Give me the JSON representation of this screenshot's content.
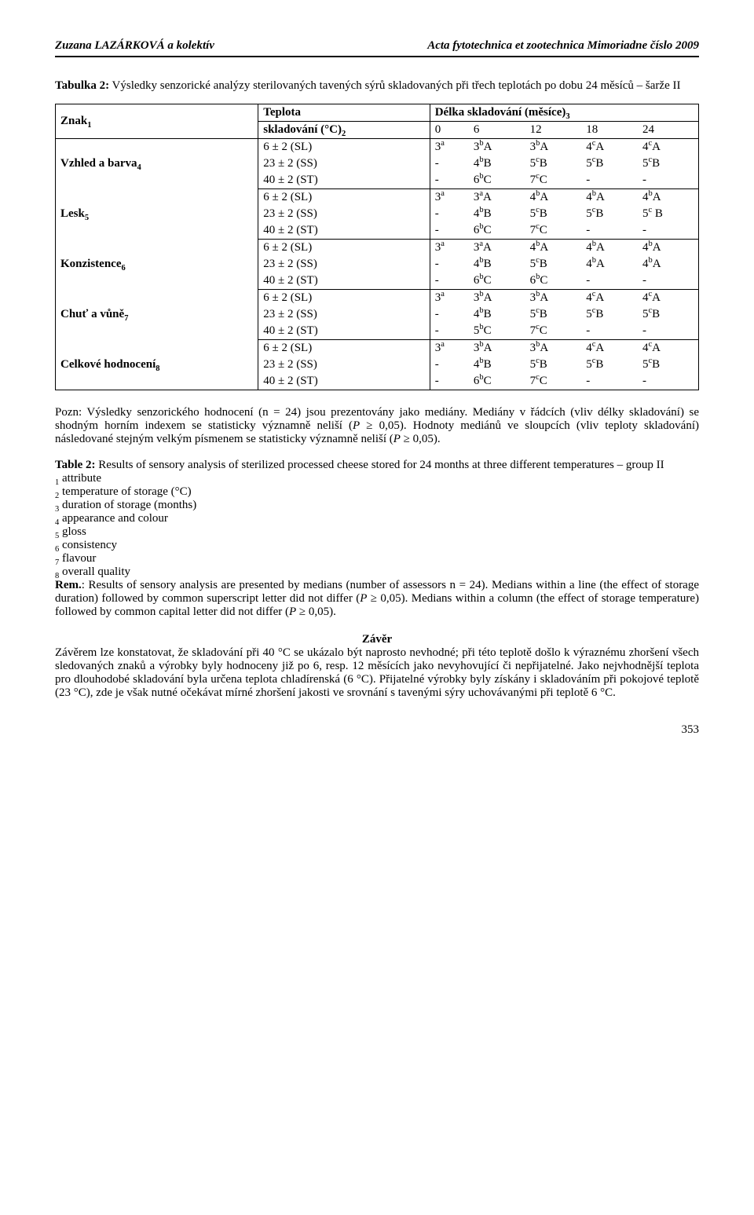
{
  "header": {
    "left": "Zuzana LAZÁRKOVÁ a kolektív",
    "right": "Acta fytotechnica et zootechnica Mimoriadne číslo 2009"
  },
  "caption_html": "<b>Tabulka 2:</b> Výsledky senzorické analýzy sterilovaných tavených sýrů skladovaných při třech teplotách po dobu 24 měsíců – šarže II",
  "table": {
    "h_znak": "Znak<sub>1</sub>",
    "h_temp_top": "Teplota",
    "h_temp_bot": "skladování (°C)<sub>2</sub>",
    "h_dur": "Délka skladování (měsíce)<sub>3</sub>",
    "months": [
      "0",
      "6",
      "12",
      "18",
      "24"
    ],
    "blocks": [
      {
        "label": "Vzhled a barva<sub>4</sub>",
        "rows": [
          {
            "t": "6 ± 2 (SL)",
            "c": [
              "3<sup>a</sup>",
              "3<sup>b</sup>A",
              "3<sup>b</sup>A",
              "4<sup>c</sup>A",
              "4<sup>c</sup>A"
            ]
          },
          {
            "t": "23 ± 2 (SS)",
            "c": [
              "-",
              "4<sup>b</sup>B",
              "5<sup>c</sup>B",
              "5<sup>c</sup>B",
              "5<sup>c</sup>B"
            ]
          },
          {
            "t": "40 ± 2 (ST)",
            "c": [
              "-",
              "6<sup>b</sup>C",
              "7<sup>c</sup>C",
              "-",
              "-"
            ]
          }
        ]
      },
      {
        "label": "Lesk<sub>5</sub>",
        "rows": [
          {
            "t": "6 ± 2 (SL)",
            "c": [
              "3<sup>a</sup>",
              "3<sup>a</sup>A",
              "4<sup>b</sup>A",
              "4<sup>b</sup>A",
              "4<sup>b</sup>A"
            ]
          },
          {
            "t": "23 ± 2 (SS)",
            "c": [
              "-",
              "4<sup>b</sup>B",
              "5<sup>c</sup>B",
              "5<sup>c</sup>B",
              "5<sup>c</sup> B"
            ]
          },
          {
            "t": "40 ± 2 (ST)",
            "c": [
              "-",
              "6<sup>b</sup>C",
              "7<sup>c</sup>C",
              "-",
              "-"
            ]
          }
        ]
      },
      {
        "label": "Konzistence<sub>6</sub>",
        "rows": [
          {
            "t": "6 ± 2 (SL)",
            "c": [
              "3<sup>a</sup>",
              "3<sup>a</sup>A",
              "4<sup>b</sup>A",
              "4<sup>b</sup>A",
              "4<sup>b</sup>A"
            ]
          },
          {
            "t": "23 ± 2 (SS)",
            "c": [
              "-",
              "4<sup>b</sup>B",
              "5<sup>c</sup>B",
              "4<sup>b</sup>A",
              "4<sup>b</sup>A"
            ]
          },
          {
            "t": "40 ± 2 (ST)",
            "c": [
              "-",
              "6<sup>b</sup>C",
              "6<sup>b</sup>C",
              "-",
              "-"
            ]
          }
        ]
      },
      {
        "label": "Chuť a vůně<sub>7</sub>",
        "rows": [
          {
            "t": "6 ± 2 (SL)",
            "c": [
              "3<sup>a</sup>",
              "3<sup>b</sup>A",
              "3<sup>b</sup>A",
              "4<sup>c</sup>A",
              "4<sup>c</sup>A"
            ]
          },
          {
            "t": "23 ± 2 (SS)",
            "c": [
              "-",
              "4<sup>b</sup>B",
              "5<sup>c</sup>B",
              "5<sup>c</sup>B",
              "5<sup>c</sup>B"
            ]
          },
          {
            "t": "40 ± 2 (ST)",
            "c": [
              "-",
              "5<sup>b</sup>C",
              "7<sup>c</sup>C",
              "-",
              "-"
            ]
          }
        ]
      },
      {
        "label": "Celkové hodnocení<sub>8</sub>",
        "rows": [
          {
            "t": "6 ± 2 (SL)",
            "c": [
              "3<sup>a</sup>",
              "3<sup>b</sup>A",
              "3<sup>b</sup>A",
              "4<sup>c</sup>A",
              "4<sup>c</sup>A"
            ]
          },
          {
            "t": "23 ± 2 (SS)",
            "c": [
              "-",
              "4<sup>b</sup>B",
              "5<sup>c</sup>B",
              "5<sup>c</sup>B",
              "5<sup>c</sup>B"
            ]
          },
          {
            "t": "40 ± 2 (ST)",
            "c": [
              "-",
              "6<sup>b</sup>C",
              "7<sup>c</sup>C",
              "-",
              "-"
            ]
          }
        ]
      }
    ]
  },
  "note_html": "Pozn: Výsledky senzorického hodnocení (n = 24) jsou prezentovány jako mediány. Mediány v řádcích (vliv délky skladování) se shodným horním indexem se statisticky významně neliší (<i>P</i> ≥ 0,05). Hodnoty mediánů ve sloupcích (vliv teploty skladování) následované stejným velkým písmenem se statisticky významně neliší (<i>P</i> ≥ 0,05).",
  "table2": {
    "title_html": "<b>Table 2:</b> Results of sensory analysis of sterilized processed cheese stored for 24 months at three different temperatures – group II",
    "legend": [
      "<sub>1</sub> attribute",
      "<sub>2</sub> temperature of storage (°C)",
      "<sub>3</sub> duration of storage (months)",
      "<sub>4</sub> appearance and colour",
      "<sub>5</sub> gloss",
      "<sub>6</sub> consistency",
      "<sub>7</sub> flavour",
      "<sub>8</sub> overall quality"
    ],
    "rem_html": "<b>Rem.</b>: Results of sensory analysis are presented by medians (number of assessors n = 24). Medians within a line (the effect of storage duration) followed by common superscript letter did not differ (<i>P</i> ≥ 0,05). Medians within a column (the effect of storage temperature) followed by common capital letter did not differ (<i>P</i> ≥ 0,05)."
  },
  "zaver": {
    "title": "Závěr",
    "body": "Závěrem lze konstatovat, že skladování při 40 °C se ukázalo být naprosto nevhodné; při této teplotě došlo k výraznému zhoršení všech sledovaných znaků a výrobky byly hodnoceny již po 6, resp. 12 měsících jako nevyhovující či nepřijatelné. Jako nejvhodnější teplota pro dlouhodobé skladování byla určena teplota chladírenská (6 °C). Přijatelné výrobky byly získány i skladováním při pokojové teplotě (23 °C), zde je však nutné očekávat mírné zhoršení jakosti ve srovnání s tavenými sýry uchovávanými při teplotě 6 °C."
  },
  "pagenum": "353"
}
